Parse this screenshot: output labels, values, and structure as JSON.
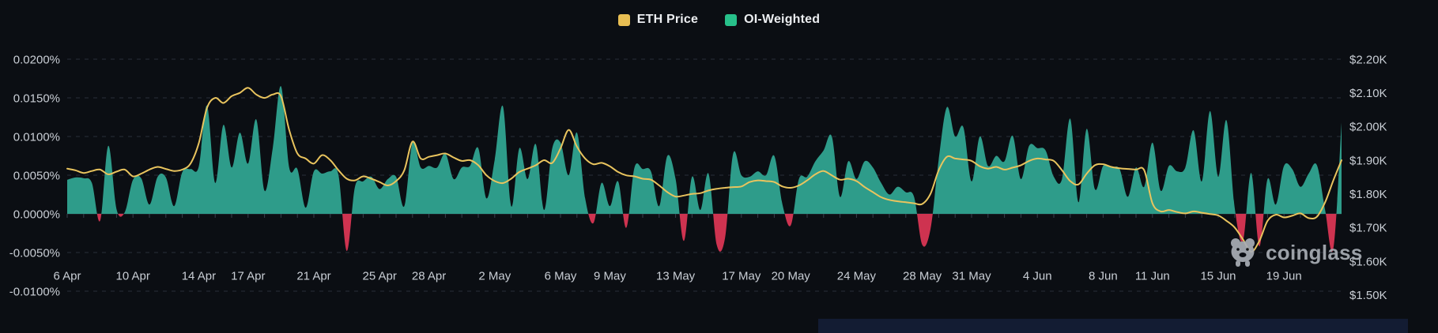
{
  "legend": {
    "items": [
      {
        "label": "ETH Price",
        "color": "#E8BE53"
      },
      {
        "label": "OI-Weighted",
        "color": "#27C08A"
      }
    ]
  },
  "watermark": {
    "text": "coinglass"
  },
  "colors": {
    "background": "#0B0E13",
    "grid": "#2A2F3A",
    "axis_text": "#C9CED5",
    "axis_line": "#2A303B",
    "axis_tick": "#39404C",
    "area_positive": "#2E9C8A",
    "area_negative": "#CE3350",
    "price_line": "#E9C45E",
    "watermark_gray": "#A9AEB5",
    "bottom_bar": "#131C33"
  },
  "chart_data": {
    "type": "area+line",
    "title": "",
    "legend_position": "top-center",
    "grid": {
      "dashed": true,
      "horizontal_only": true
    },
    "x_axis": {
      "tick_labels": [
        "6 Apr",
        "10 Apr",
        "14 Apr",
        "17 Apr",
        "21 Apr",
        "25 Apr",
        "28 Apr",
        "2 May",
        "6 May",
        "9 May",
        "13 May",
        "17 May",
        "20 May",
        "24 May",
        "28 May",
        "31 May",
        "4 Jun",
        "8 Jun",
        "11 Jun",
        "15 Jun",
        "19 Jun"
      ],
      "tick_days": [
        0,
        4,
        8,
        11,
        15,
        19,
        22,
        26,
        30,
        33,
        37,
        41,
        44,
        48,
        52,
        55,
        59,
        63,
        66,
        70,
        74
      ],
      "domain_days": [
        0,
        77.5
      ]
    },
    "y_axis_left": {
      "unit": "%",
      "tick_labels": [
        "0.0200%",
        "0.0150%",
        "0.0100%",
        "0.0050%",
        "0.0000%",
        "-0.0050%",
        "-0.0100%"
      ],
      "tick_values": [
        0.02,
        0.015,
        0.01,
        0.005,
        0,
        -0.005,
        -0.01
      ],
      "range": [
        -0.0125,
        0.0215
      ]
    },
    "y_axis_right": {
      "unit": "$K",
      "tick_labels": [
        "$2.20K",
        "$2.10K",
        "$2.00K",
        "$1.90K",
        "$1.80K",
        "$1.70K",
        "$1.60K",
        "$1.50K"
      ],
      "tick_values": [
        2.2,
        2.1,
        2.0,
        1.9,
        1.8,
        1.7,
        1.6,
        1.5
      ],
      "range": [
        1.5,
        2.2
      ]
    },
    "series": [
      {
        "name": "OI-Weighted",
        "type": "area",
        "axis": "left",
        "unit": "%",
        "color_positive": "#2E9C8A",
        "color_negative": "#CE3350",
        "x_start_day": 0,
        "x_step_days": 0.5,
        "values": [
          0.0044,
          0.0047,
          0.0046,
          0.004,
          -0.0009,
          0.0088,
          0.0006,
          0.0002,
          0.0044,
          0.0046,
          0.0012,
          0.0048,
          0.0047,
          0.001,
          0.0054,
          0.0058,
          0.0061,
          0.014,
          0.004,
          0.0115,
          0.006,
          0.0105,
          0.0065,
          0.0122,
          0.003,
          0.0085,
          0.0165,
          0.006,
          0.0058,
          0.0008,
          0.0055,
          0.0052,
          0.0055,
          0.005,
          -0.0048,
          0.0035,
          0.0042,
          0.0048,
          0.0032,
          0.0045,
          0.0048,
          0.001,
          0.0092,
          0.006,
          0.0062,
          0.006,
          0.0078,
          0.0045,
          0.006,
          0.0062,
          0.0085,
          0.002,
          0.007,
          0.0139,
          0.001,
          0.0085,
          0.0045,
          0.009,
          0.0005,
          0.0085,
          0.0092,
          0.005,
          0.0105,
          0.002,
          -0.0012,
          0.004,
          0.001,
          0.0042,
          -0.0018,
          0.006,
          0.0058,
          0.0055,
          0.001,
          0.0075,
          0.0045,
          -0.0035,
          0.0048,
          0.0005,
          0.0052,
          -0.004,
          -0.0032,
          0.0078,
          0.005,
          0.0048,
          0.0055,
          0.005,
          0.0075,
          0.0012,
          -0.0015,
          0.0045,
          0.0048,
          0.0068,
          0.0082,
          0.01,
          0.0022,
          0.0068,
          0.0045,
          0.0068,
          0.006,
          0.004,
          0.0025,
          0.0035,
          0.0028,
          0.0022,
          -0.004,
          -0.002,
          0.007,
          0.0138,
          0.01,
          0.0112,
          0.0042,
          0.01,
          0.0062,
          0.0075,
          0.0068,
          0.0101,
          0.0045,
          0.0088,
          0.0085,
          0.0082,
          0.0048,
          0.0045,
          0.0123,
          0.0015,
          0.011,
          0.0032,
          0.0062,
          0.006,
          0.0058,
          0.0022,
          0.006,
          0.0035,
          0.0092,
          0.003,
          0.0062,
          0.0055,
          0.006,
          0.0108,
          0.0042,
          0.0133,
          0.0048,
          0.0121,
          0.0008,
          -0.0035,
          0.0053,
          -0.0042,
          0.0045,
          0.0012,
          0.0062,
          0.0058,
          0.0035,
          0.0052,
          0.0063,
          0.0005,
          -0.0045,
          0.0118
        ]
      },
      {
        "name": "ETH Price",
        "type": "line",
        "axis": "right",
        "unit": "$K",
        "color": "#E9C45E",
        "x_start_day": 0,
        "x_step_days": 0.5,
        "values": [
          1.875,
          1.87,
          1.862,
          1.868,
          1.872,
          1.858,
          1.866,
          1.872,
          1.852,
          1.86,
          1.872,
          1.88,
          1.874,
          1.868,
          1.872,
          1.89,
          1.95,
          2.055,
          2.085,
          2.07,
          2.09,
          2.1,
          2.115,
          2.095,
          2.085,
          2.095,
          2.09,
          1.99,
          1.92,
          1.905,
          1.89,
          1.915,
          1.9,
          1.87,
          1.845,
          1.84,
          1.852,
          1.845,
          1.835,
          1.825,
          1.838,
          1.87,
          1.955,
          1.905,
          1.91,
          1.915,
          1.92,
          1.908,
          1.898,
          1.9,
          1.885,
          1.855,
          1.838,
          1.832,
          1.845,
          1.865,
          1.875,
          1.885,
          1.9,
          1.892,
          1.935,
          1.99,
          1.94,
          1.905,
          1.888,
          1.892,
          1.882,
          1.865,
          1.855,
          1.852,
          1.845,
          1.842,
          1.825,
          1.805,
          1.792,
          1.795,
          1.8,
          1.802,
          1.81,
          1.815,
          1.818,
          1.82,
          1.822,
          1.835,
          1.84,
          1.838,
          1.835,
          1.822,
          1.818,
          1.825,
          1.84,
          1.858,
          1.868,
          1.855,
          1.842,
          1.845,
          1.838,
          1.82,
          1.805,
          1.79,
          1.782,
          1.778,
          1.775,
          1.772,
          1.77,
          1.8,
          1.87,
          1.91,
          1.905,
          1.902,
          1.898,
          1.882,
          1.875,
          1.88,
          1.872,
          1.878,
          1.885,
          1.898,
          1.905,
          1.902,
          1.898,
          1.87,
          1.838,
          1.828,
          1.86,
          1.885,
          1.888,
          1.88,
          1.876,
          1.874,
          1.872,
          1.87,
          1.772,
          1.748,
          1.752,
          1.746,
          1.742,
          1.748,
          1.744,
          1.74,
          1.736,
          1.72,
          1.7,
          1.665,
          1.628,
          1.66,
          1.72,
          1.738,
          1.73,
          1.735,
          1.742,
          1.728,
          1.732,
          1.775,
          1.84,
          1.9
        ]
      }
    ]
  }
}
